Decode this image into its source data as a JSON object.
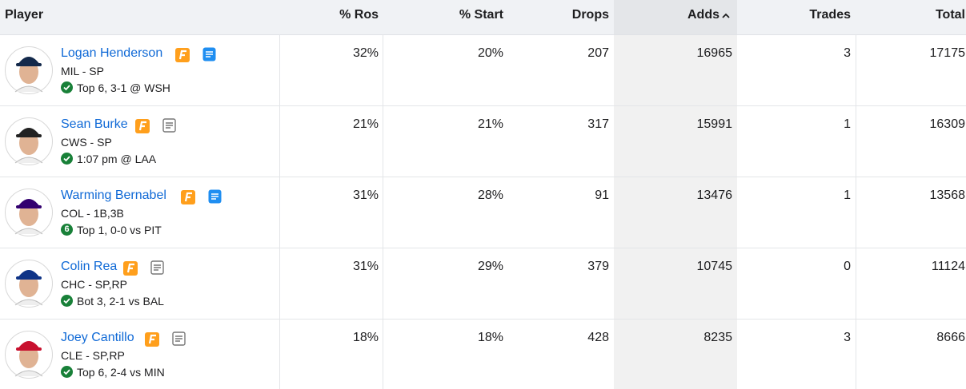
{
  "table": {
    "headers": [
      "Player",
      "% Ros",
      "% Start",
      "Drops",
      "Adds",
      "Trades",
      "Total"
    ],
    "rows": [
      {
        "name": "Logan Henderson",
        "team_pos": "MIL - SP",
        "status": "Top 6, 3-1 @ WSH",
        "cells": [
          "32%",
          "20%",
          207,
          16965,
          3,
          17175
        ]
      },
      {
        "name": "Sean Burke",
        "team_pos": "CWS - SP",
        "status": "1:07 pm @ LAA",
        "cells": [
          "21%",
          "21%",
          317,
          15991,
          1,
          16309
        ]
      },
      {
        "name": "Warming Bernabel",
        "team_pos": "COL - 1B,3B",
        "badge": "6",
        "status": "Top 1, 0-0 vs PIT",
        "cells": [
          "31%",
          "28%",
          91,
          13476,
          1,
          13568
        ]
      },
      {
        "name": "Colin Rea",
        "team_pos": "CHC - SP,RP",
        "status": "Bot 3, 2-1 vs BAL",
        "cells": [
          "31%",
          "29%",
          379,
          10745,
          0,
          11124
        ]
      },
      {
        "name": "Joey Cantillo",
        "team_pos": "CLE - SP,RP",
        "status": "Top 6, 2-4 vs MIN",
        "cells": [
          "18%",
          "18%",
          428,
          8235,
          3,
          8666
        ]
      }
    ]
  }
}
